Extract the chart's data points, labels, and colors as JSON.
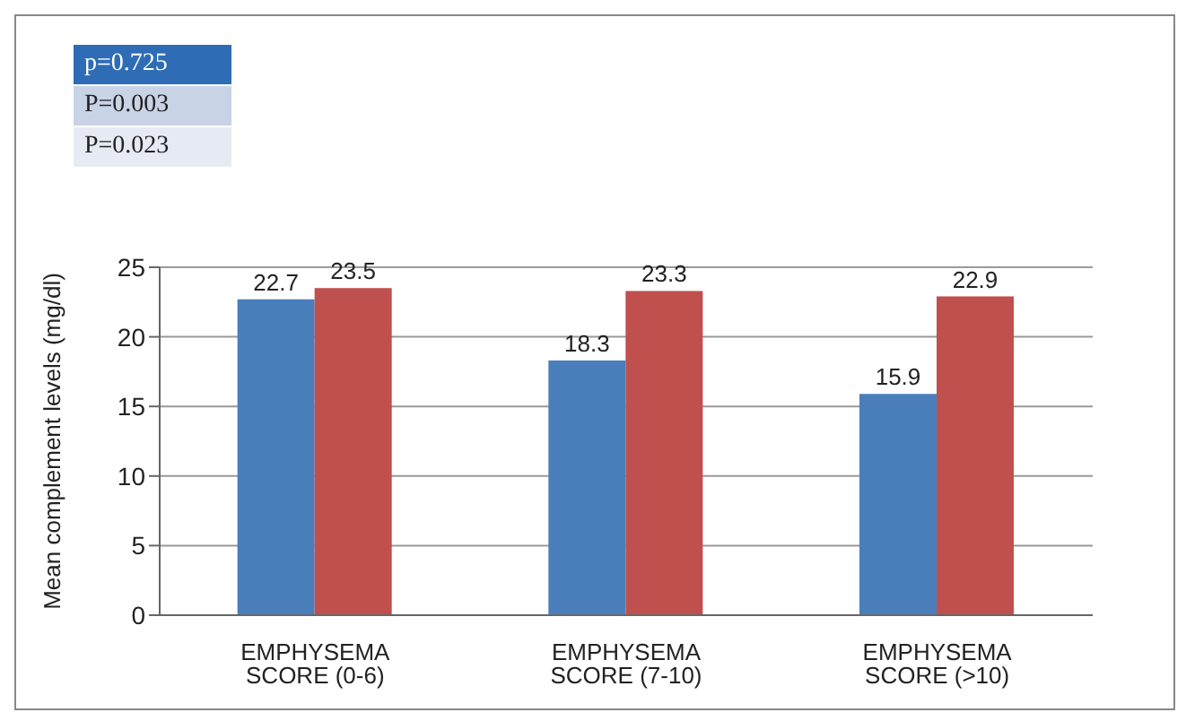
{
  "chart_data": {
    "type": "bar",
    "ylabel": "Mean complement levels (mg/dl)",
    "categories": [
      "EMPHYSEMA SCORE (0-6)",
      "EMPHYSEMA SCORE (7-10)",
      "EMPHYSEMA SCORE (>10)"
    ],
    "series": [
      {
        "color": "#4a7ebb",
        "values": [
          22.7,
          18.3,
          15.9
        ]
      },
      {
        "color": "#c0504d",
        "values": [
          23.5,
          23.3,
          22.9
        ]
      }
    ],
    "ylim": [
      0,
      25
    ],
    "yticks": [
      0,
      5,
      10,
      15,
      20,
      25
    ],
    "grid": "y",
    "data_labels": true,
    "annotations": [
      "p=0.725",
      "P=0.003",
      "P=0.023"
    ]
  }
}
